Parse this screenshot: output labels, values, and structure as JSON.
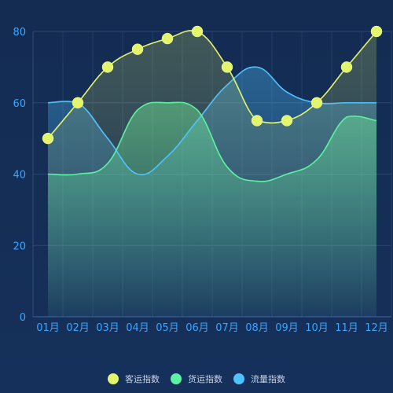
{
  "chart_data": {
    "type": "line",
    "title": "",
    "xlabel": "",
    "ylabel": "",
    "categories": [
      "01月",
      "02月",
      "03月",
      "04月",
      "05月",
      "06月",
      "07月",
      "08月",
      "09月",
      "10月",
      "11月",
      "12月"
    ],
    "ylim": [
      0,
      80
    ],
    "yticks": [
      0,
      20,
      40,
      60,
      80
    ],
    "grid": true,
    "legend_position": "bottom-center",
    "series": [
      {
        "name": "客运指数",
        "color": "#e3f56a",
        "values": [
          50,
          60,
          70,
          75,
          78,
          80,
          70,
          55,
          55,
          60,
          70,
          80
        ],
        "markers": true
      },
      {
        "name": "货运指数",
        "color": "#5cf2a3",
        "values": [
          40,
          40,
          43,
          58,
          60,
          58,
          42,
          38,
          40,
          44,
          56,
          55
        ],
        "markers": false
      },
      {
        "name": "流量指数",
        "color": "#4fc3ff",
        "values": [
          60,
          60,
          50,
          40,
          45,
          55,
          65,
          70,
          63,
          60,
          60,
          60
        ],
        "markers": false
      }
    ]
  }
}
